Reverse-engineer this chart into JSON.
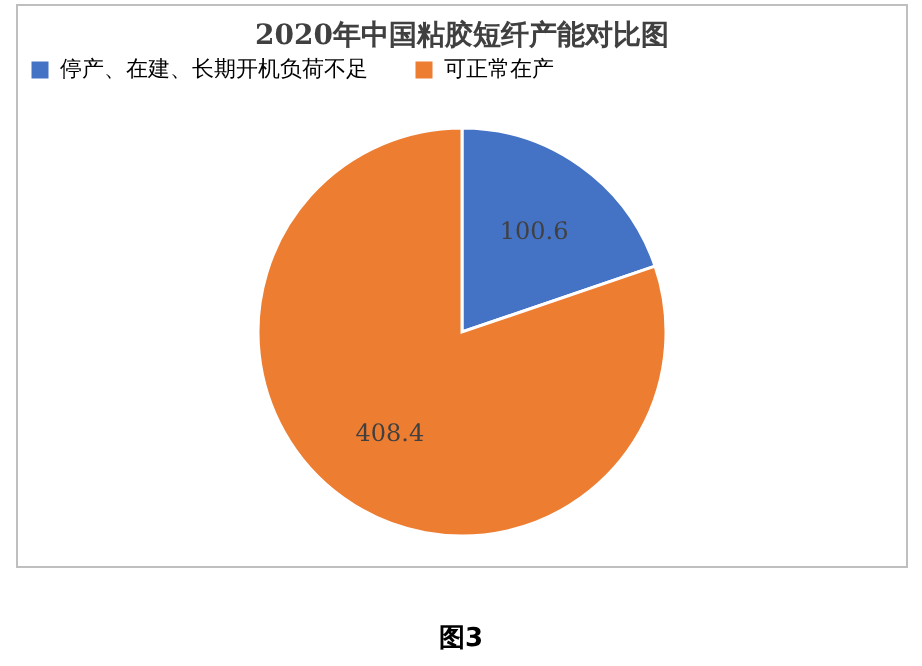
{
  "chart_data": {
    "type": "pie",
    "title": "2020年中国粘胶短纤产能对比图",
    "categories": [
      "停产、在建、长期开机负荷不足",
      "可正常在产"
    ],
    "values": [
      100.6,
      408.4
    ],
    "colors": [
      "#4472c4",
      "#ed7d31"
    ],
    "data_labels": true,
    "legend": "top",
    "annotations": [
      "图3"
    ]
  }
}
